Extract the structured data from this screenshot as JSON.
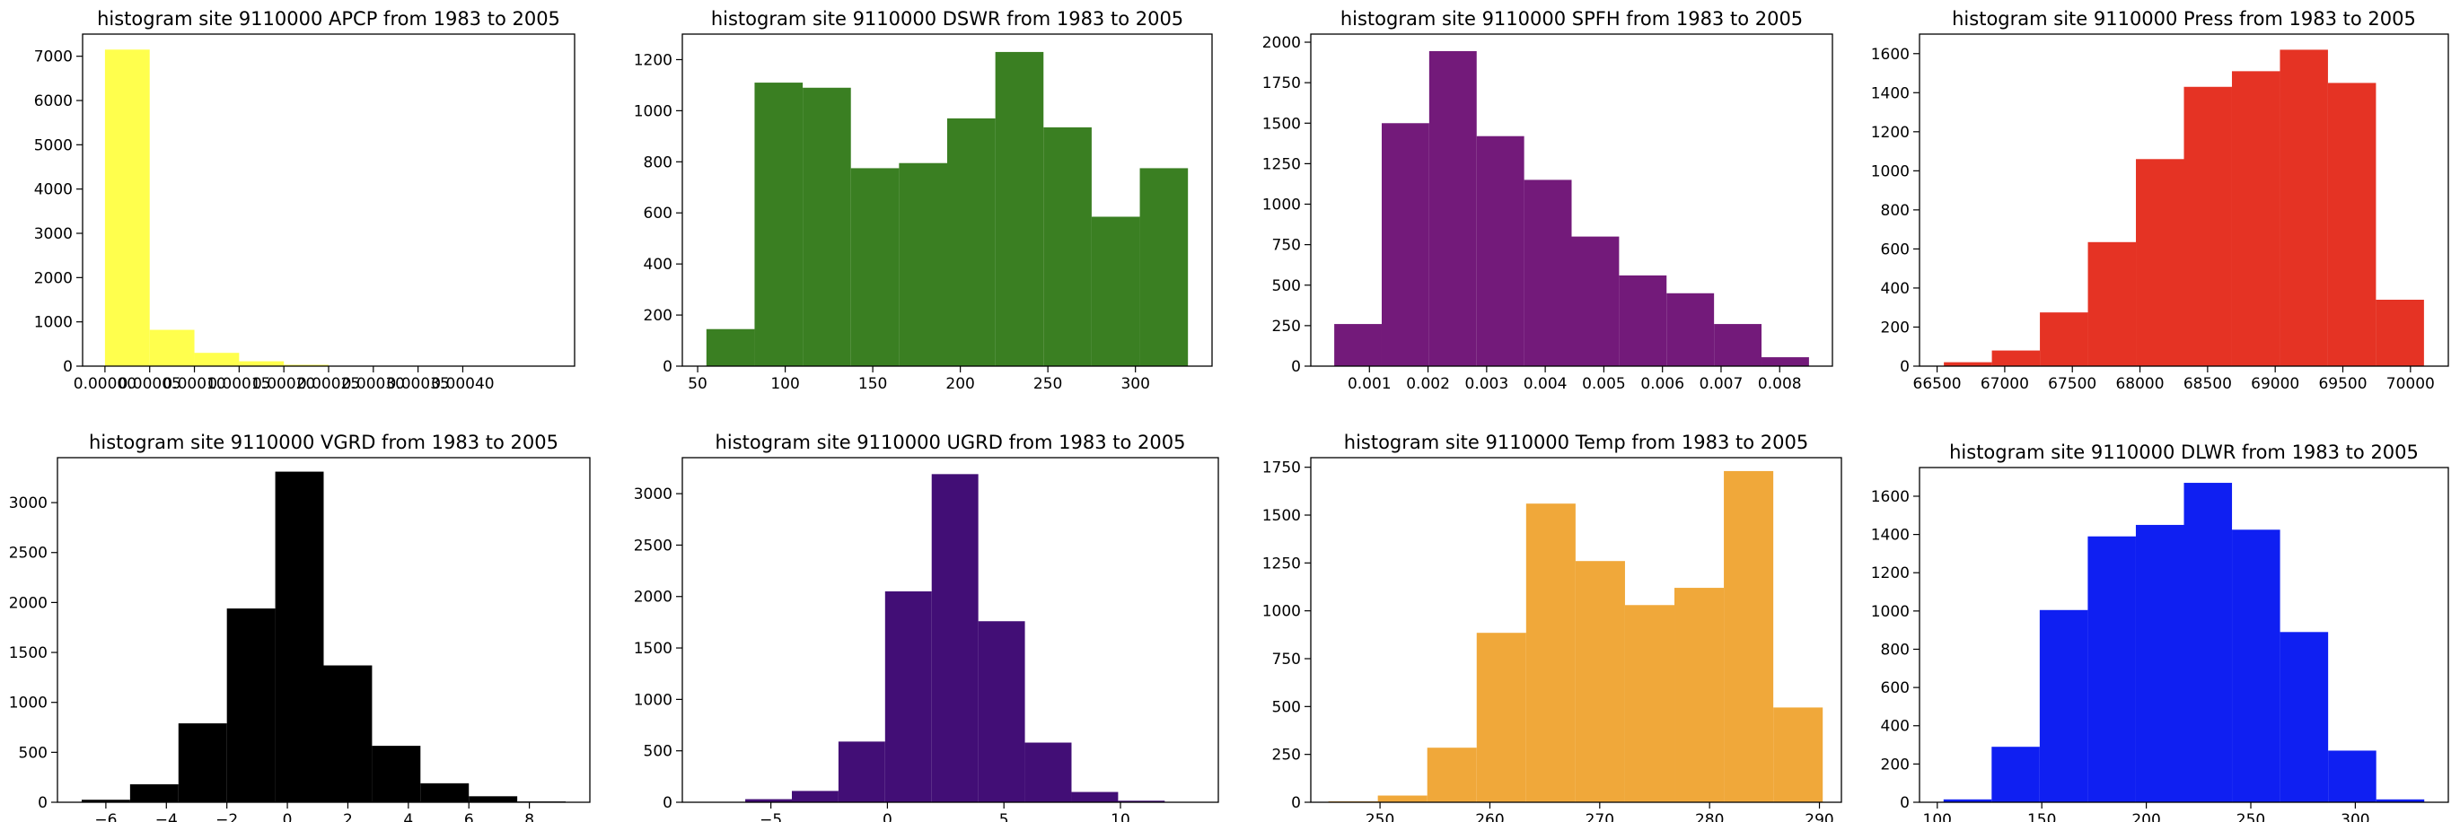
{
  "chart_data": [
    {
      "type": "bar",
      "title": "histogram site 9110000 APCP from 1983 to 2005",
      "color": "#ffff4d",
      "bin_edges": [
        0.0,
        5e-05,
        0.0001,
        0.00015,
        0.0002,
        0.00025,
        0.0003,
        0.00035,
        0.0004,
        0.00045,
        0.0005
      ],
      "values": [
        7150,
        820,
        300,
        110,
        30,
        10,
        5,
        2,
        1,
        1
      ],
      "xlim": [
        -2.5e-05,
        0.000525
      ],
      "ylim": [
        0,
        7500
      ],
      "xticks": [
        0.0,
        5e-05,
        0.0001,
        0.00015,
        0.0002,
        0.00025,
        0.0003,
        0.00035,
        0.0004
      ],
      "xtick_labels": [
        "0.00000",
        "0.00005",
        "0.00010",
        "0.00015",
        "0.00020",
        "0.00025",
        "0.00030",
        "0.00035",
        "0.00040"
      ],
      "yticks": [
        0,
        1000,
        2000,
        3000,
        4000,
        5000,
        6000,
        7000
      ],
      "ytick_labels": [
        "0",
        "1000",
        "2000",
        "3000",
        "4000",
        "5000",
        "6000",
        "7000"
      ]
    },
    {
      "type": "bar",
      "title": "histogram site 9110000 DSWR from 1983 to 2005",
      "color": "#3a7f22",
      "bin_edges": [
        55,
        82.5,
        110,
        137.5,
        165,
        192.5,
        220,
        247.5,
        275,
        302.5,
        330
      ],
      "values": [
        145,
        1110,
        1090,
        775,
        795,
        970,
        1230,
        935,
        585,
        775
      ],
      "xlim": [
        41.25,
        343.75
      ],
      "ylim": [
        0,
        1300
      ],
      "xticks": [
        50,
        100,
        150,
        200,
        250,
        300
      ],
      "xtick_labels": [
        "50",
        "100",
        "150",
        "200",
        "250",
        "300"
      ],
      "yticks": [
        0,
        200,
        400,
        600,
        800,
        1000,
        1200
      ],
      "ytick_labels": [
        "0",
        "200",
        "400",
        "600",
        "800",
        "1000",
        "1200"
      ]
    },
    {
      "type": "bar",
      "title": "histogram site 9110000 SPFH from 1983 to 2005",
      "color": "#731a7a",
      "bin_edges": [
        0.0004,
        0.00121,
        0.00202,
        0.00283,
        0.00364,
        0.00445,
        0.00526,
        0.00607,
        0.00688,
        0.00769,
        0.0085
      ],
      "values": [
        260,
        1500,
        1945,
        1420,
        1150,
        800,
        560,
        450,
        260,
        55
      ],
      "xlim": [
        0.0,
        0.0089
      ],
      "ylim": [
        0,
        2050
      ],
      "xticks": [
        0.001,
        0.002,
        0.003,
        0.004,
        0.005,
        0.006,
        0.007,
        0.008
      ],
      "xtick_labels": [
        "0.001",
        "0.002",
        "0.003",
        "0.004",
        "0.005",
        "0.006",
        "0.007",
        "0.008"
      ],
      "yticks": [
        0,
        250,
        500,
        750,
        1000,
        1250,
        1500,
        1750,
        2000
      ],
      "ytick_labels": [
        "0",
        "250",
        "500",
        "750",
        "1000",
        "1250",
        "1500",
        "1750",
        "2000"
      ]
    },
    {
      "type": "bar",
      "title": "histogram site 9110000 Press from 1983 to 2005",
      "color": "#e53324",
      "bin_edges": [
        66550,
        66905,
        67260,
        67615,
        67970,
        68325,
        68680,
        69035,
        69390,
        69745,
        70100
      ],
      "values": [
        20,
        80,
        275,
        635,
        1060,
        1430,
        1510,
        1620,
        1450,
        340
      ],
      "xlim": [
        66370,
        70280
      ],
      "ylim": [
        0,
        1700
      ],
      "xticks": [
        66500,
        67000,
        67500,
        68000,
        68500,
        69000,
        69500,
        70000
      ],
      "xtick_labels": [
        "66500",
        "67000",
        "67500",
        "68000",
        "68500",
        "69000",
        "69500",
        "70000"
      ],
      "yticks": [
        0,
        200,
        400,
        600,
        800,
        1000,
        1200,
        1400,
        1600
      ],
      "ytick_labels": [
        "0",
        "200",
        "400",
        "600",
        "800",
        "1000",
        "1200",
        "1400",
        "1600"
      ]
    },
    {
      "type": "bar",
      "title": "histogram site 9110000 VGRD from 1983 to 2005",
      "color": "#000000",
      "bin_edges": [
        -6.8,
        -5.2,
        -3.6,
        -2.0,
        -0.4,
        1.2,
        2.8,
        4.4,
        6.0,
        7.6,
        9.2
      ],
      "values": [
        25,
        180,
        790,
        1940,
        3310,
        1370,
        565,
        190,
        60,
        8
      ],
      "xlim": [
        -7.6,
        10.0
      ],
      "ylim": [
        0,
        3450
      ],
      "xticks": [
        -6,
        -4,
        -2,
        0,
        2,
        4,
        6,
        8
      ],
      "xtick_labels": [
        "−6",
        "−4",
        "−2",
        "0",
        "2",
        "4",
        "6",
        "8"
      ],
      "yticks": [
        0,
        500,
        1000,
        1500,
        2000,
        2500,
        3000
      ],
      "ytick_labels": [
        "0",
        "500",
        "1000",
        "1500",
        "2000",
        "2500",
        "3000"
      ]
    },
    {
      "type": "bar",
      "title": "histogram site 9110000 UGRD from 1983 to 2005",
      "color": "#420e76",
      "bin_edges": [
        -6.1,
        -4.1,
        -2.1,
        -0.1,
        1.9,
        3.9,
        5.9,
        7.9,
        9.9,
        11.9,
        13.9
      ],
      "values": [
        30,
        110,
        590,
        2050,
        3190,
        1760,
        580,
        100,
        15,
        2
      ],
      "xlim": [
        -8.8,
        14.2
      ],
      "ylim": [
        0,
        3350
      ],
      "xticks": [
        -5,
        0,
        5,
        10
      ],
      "xtick_labels": [
        "−5",
        "0",
        "5",
        "10"
      ],
      "yticks": [
        0,
        500,
        1000,
        1500,
        2000,
        2500,
        3000
      ],
      "ytick_labels": [
        "0",
        "500",
        "1000",
        "1500",
        "2000",
        "2500",
        "3000"
      ]
    },
    {
      "type": "bar",
      "title": "histogram site 9110000 Temp from 1983 to 2005",
      "color": "#f0a83a",
      "bin_edges": [
        245.3,
        249.8,
        254.3,
        258.8,
        263.3,
        267.8,
        272.3,
        276.8,
        281.3,
        285.8,
        290.3
      ],
      "values": [
        5,
        35,
        285,
        885,
        1560,
        1260,
        1030,
        1120,
        1730,
        495
      ],
      "xlim": [
        243.7,
        292.0
      ],
      "ylim": [
        0,
        1800
      ],
      "xticks": [
        250,
        260,
        270,
        280,
        290
      ],
      "xtick_labels": [
        "250",
        "260",
        "270",
        "280",
        "290"
      ],
      "yticks": [
        0,
        250,
        500,
        750,
        1000,
        1250,
        1500,
        1750
      ],
      "ytick_labels": [
        "0",
        "250",
        "500",
        "750",
        "1000",
        "1250",
        "1500",
        "1750"
      ]
    },
    {
      "type": "bar",
      "title": "histogram site 9110000 DLWR from 1983 to 2005",
      "color": "#0f1ff2",
      "bin_edges": [
        103,
        126,
        149,
        172,
        195,
        218,
        241,
        264,
        287,
        310,
        333
      ],
      "values": [
        15,
        290,
        1005,
        1390,
        1450,
        1670,
        1425,
        890,
        270,
        15
      ],
      "xlim": [
        91.5,
        344.5
      ],
      "ylim": [
        0,
        1750
      ],
      "xticks": [
        100,
        150,
        200,
        250,
        300
      ],
      "xtick_labels": [
        "100",
        "150",
        "200",
        "250",
        "300"
      ],
      "yticks": [
        0,
        200,
        400,
        600,
        800,
        1000,
        1200,
        1400,
        1600
      ],
      "ytick_labels": [
        "0",
        "200",
        "400",
        "600",
        "800",
        "1000",
        "1200",
        "1400",
        "1600"
      ]
    }
  ]
}
